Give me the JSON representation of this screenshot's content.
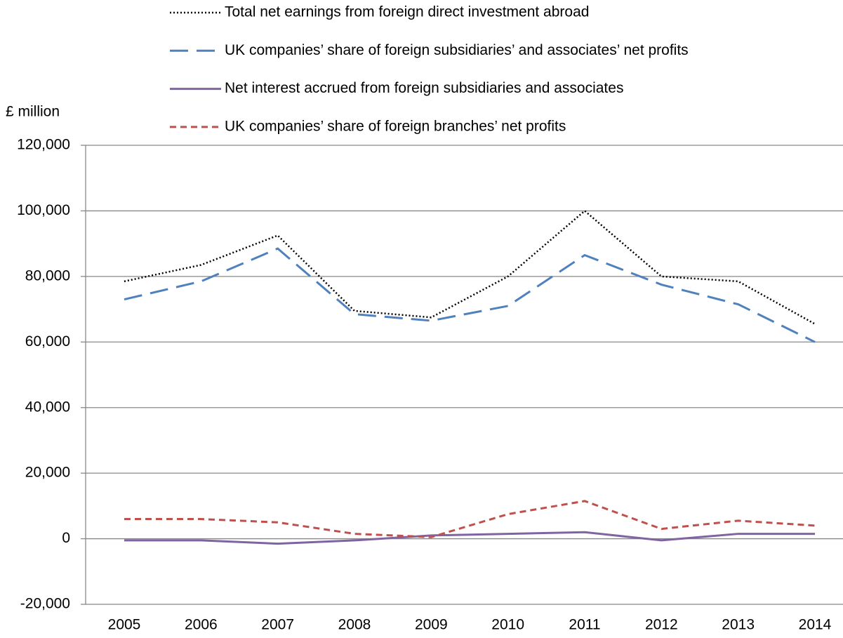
{
  "chart_data": {
    "type": "line",
    "y_label": "£ million",
    "categories": [
      "2005",
      "2006",
      "2007",
      "2008",
      "2009",
      "2010",
      "2011",
      "2012",
      "2013",
      "2014"
    ],
    "series": [
      {
        "name": "Total net earnings from foreign direct investment abroad",
        "color": "#000000",
        "dash": "dotted",
        "values": [
          78500,
          83500,
          92500,
          69500,
          67500,
          80000,
          100000,
          80000,
          78500,
          65500
        ]
      },
      {
        "name": "UK companies’ share of foreign subsidiaries’ and associates’ net profits",
        "color": "#4f81bd",
        "dash": "long",
        "values": [
          73000,
          78500,
          88500,
          68500,
          66500,
          71000,
          86500,
          77500,
          71500,
          60000
        ]
      },
      {
        "name": "Net interest accrued from foreign subsidiaries and associates",
        "color": "#8064a2",
        "dash": "solid",
        "values": [
          -500,
          -500,
          -1500,
          -500,
          1000,
          1500,
          2000,
          -500,
          1500,
          1500
        ]
      },
      {
        "name": "UK companies’ share of foreign branches’ net profits",
        "color": "#c0504d",
        "dash": "short",
        "values": [
          6000,
          6000,
          5000,
          1500,
          500,
          7500,
          11500,
          3000,
          5500,
          4000
        ]
      }
    ],
    "ylim": [
      -20000,
      120000
    ],
    "yticks": [
      {
        "value": -20000,
        "label": "-20,000"
      },
      0,
      {
        "value": 20000,
        "label": "20,000"
      },
      {
        "value": 40000,
        "label": "40,000"
      },
      {
        "value": 60000,
        "label": "60,000"
      },
      {
        "value": 80000,
        "label": "80,000"
      },
      {
        "value": 100000,
        "label": "100,000"
      },
      {
        "value": 120000,
        "label": "120,000"
      }
    ],
    "grid": true,
    "legend": "top"
  }
}
